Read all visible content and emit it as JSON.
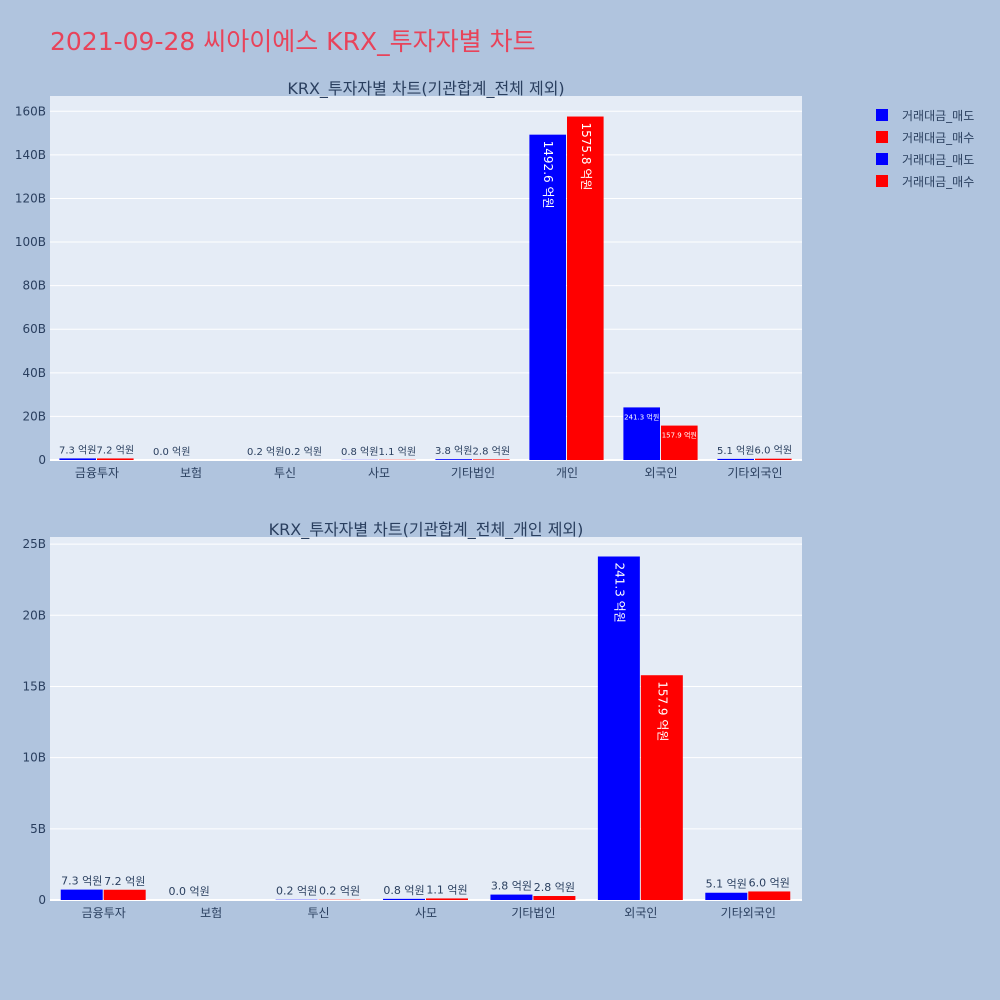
{
  "page_title": "2021-09-28 씨아이에스 KRX_투자자별 차트",
  "colors": {
    "sell": "#0000ff",
    "buy": "#ff0000",
    "title": "#e8435a",
    "background": "#b0c4de",
    "plot_bg": "#e5ecf6"
  },
  "legend": {
    "placement": "top-right",
    "items": [
      {
        "label": "거래대금_매도",
        "color": "#0000ff"
      },
      {
        "label": "거래대금_매수",
        "color": "#ff0000"
      },
      {
        "label": "거래대금_매도",
        "color": "#0000ff"
      },
      {
        "label": "거래대금_매수",
        "color": "#ff0000"
      }
    ]
  },
  "chart_data": [
    {
      "type": "bar",
      "title": "KRX_투자자별 차트(기관합계_전체 제외)",
      "categories": [
        "금융투자",
        "보험",
        "투신",
        "사모",
        "기타법인",
        "개인",
        "외국인",
        "기타외국인"
      ],
      "series": [
        {
          "name": "거래대금_매도",
          "color": "#0000ff",
          "values": [
            0.73,
            0.0,
            0.02,
            0.08,
            0.38,
            149.26,
            24.13,
            0.51
          ],
          "labels": [
            "7.3 억원",
            "0.0 억원",
            "0.2 억원",
            "0.8 억원",
            "3.8 억원",
            "1492.6 억원",
            "241.3 억원",
            "5.1 억원"
          ]
        },
        {
          "name": "거래대금_매수",
          "color": "#ff0000",
          "values": [
            0.72,
            0.0,
            0.02,
            0.11,
            0.28,
            157.58,
            15.79,
            0.6
          ],
          "labels": [
            "7.2 억원",
            "",
            "0.2 억원",
            "1.1 억원",
            "2.8 억원",
            "1575.8 억원",
            "157.9 억원",
            "6.0 억원"
          ]
        }
      ],
      "yticks": [
        "0",
        "20B",
        "40B",
        "60B",
        "80B",
        "100B",
        "120B",
        "140B",
        "160B"
      ],
      "ylim": [
        0,
        167
      ],
      "grid": true
    },
    {
      "type": "bar",
      "title": "KRX_투자자별 차트(기관합계_전체_개인 제외)",
      "categories": [
        "금융투자",
        "보험",
        "투신",
        "사모",
        "기타법인",
        "외국인",
        "기타외국인"
      ],
      "series": [
        {
          "name": "거래대금_매도",
          "color": "#0000ff",
          "values": [
            0.73,
            0.0,
            0.02,
            0.08,
            0.38,
            24.13,
            0.51
          ],
          "labels": [
            "7.3 억원",
            "0.0 억원",
            "0.2 억원",
            "0.8 억원",
            "3.8 억원",
            "241.3 억원",
            "5.1 억원"
          ]
        },
        {
          "name": "거래대금_매수",
          "color": "#ff0000",
          "values": [
            0.72,
            0.0,
            0.02,
            0.11,
            0.28,
            15.79,
            0.6
          ],
          "labels": [
            "7.2 억원",
            "",
            "0.2 억원",
            "1.1 억원",
            "2.8 억원",
            "157.9 억원",
            "6.0 억원"
          ]
        }
      ],
      "yticks": [
        "0",
        "5B",
        "10B",
        "15B",
        "20B",
        "25B"
      ],
      "ylim": [
        0,
        25.5
      ],
      "grid": true
    }
  ]
}
